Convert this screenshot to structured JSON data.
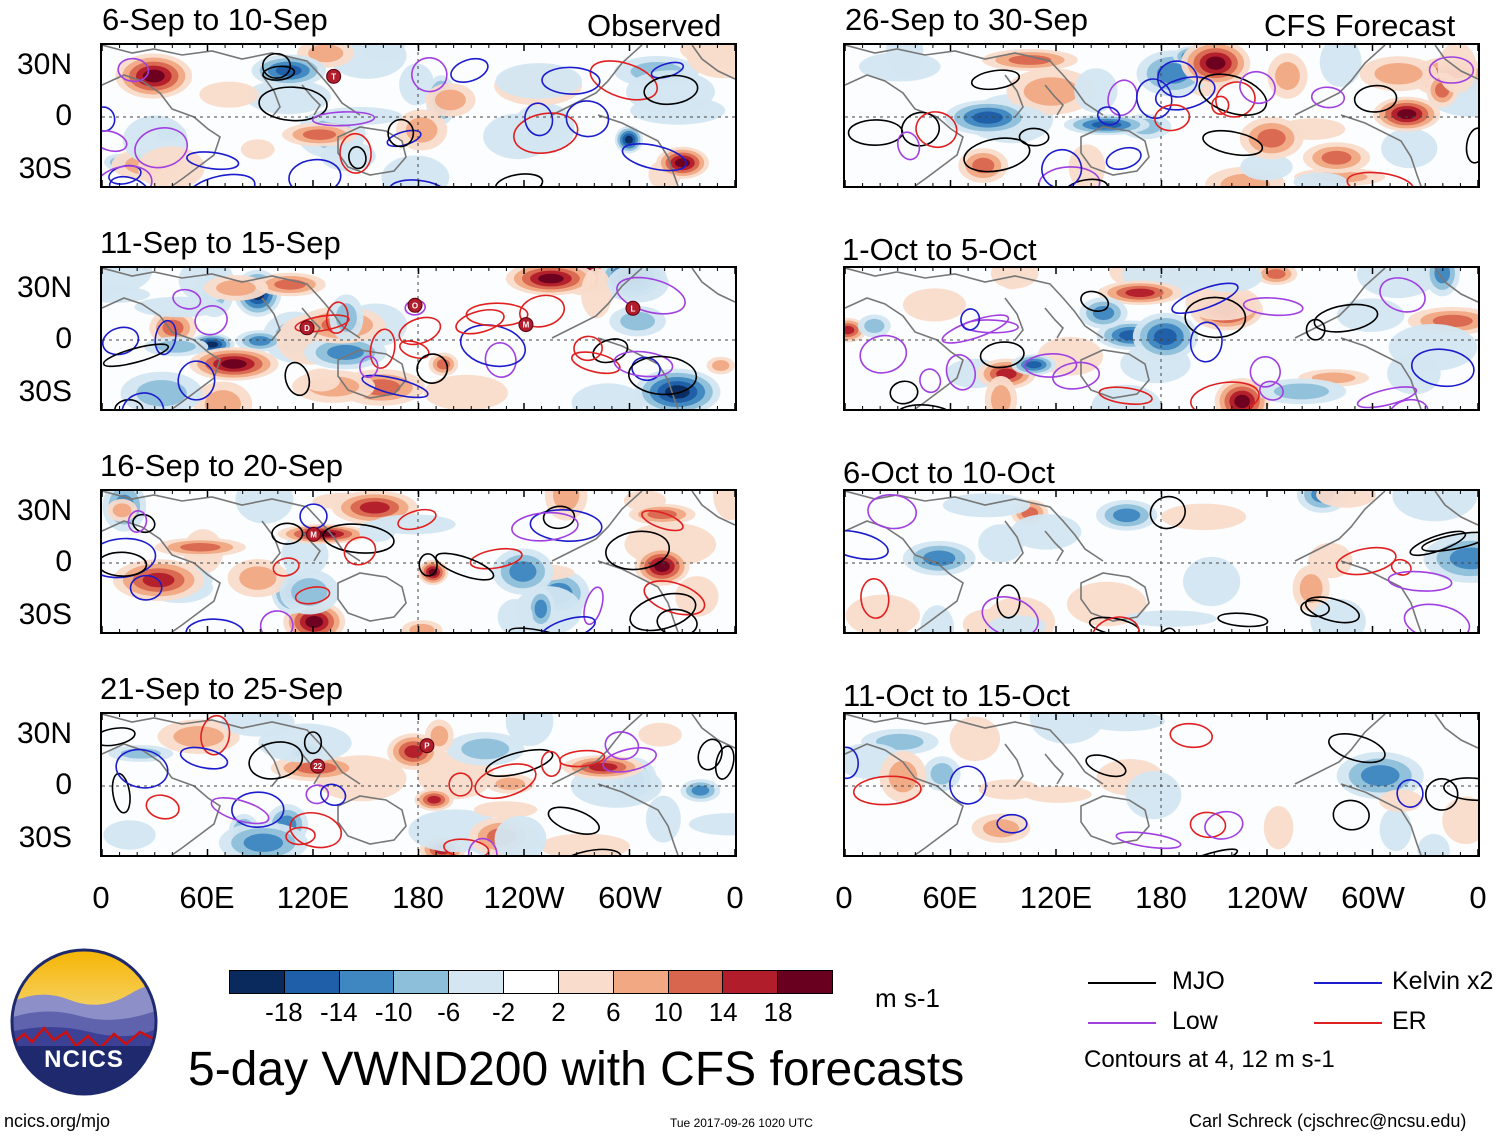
{
  "headers": {
    "observed": "Observed",
    "forecast": "CFS Forecast"
  },
  "panels": [
    {
      "period": "6-Sep to 10-Sep",
      "intensity": 1.0
    },
    {
      "period": "11-Sep to 15-Sep",
      "intensity": 1.0
    },
    {
      "period": "16-Sep to 20-Sep",
      "intensity": 0.9
    },
    {
      "period": "21-Sep to 25-Sep",
      "intensity": 0.85
    },
    {
      "period": "26-Sep to 30-Sep",
      "intensity": 0.9
    },
    {
      "period": "1-Oct to 5-Oct",
      "intensity": 0.8
    },
    {
      "period": "6-Oct to 10-Oct",
      "intensity": 0.45
    },
    {
      "period": "11-Oct to 15-Oct",
      "intensity": 0.3
    }
  ],
  "lat_labels": [
    "30N",
    "0",
    "30S"
  ],
  "lon_labels": [
    "0",
    "60E",
    "120E",
    "180",
    "120W",
    "60W",
    "0"
  ],
  "storm_markers": [
    {
      "panel": 0,
      "label": "T"
    },
    {
      "panel": 1,
      "label": "D"
    },
    {
      "panel": 1,
      "label": "O"
    },
    {
      "panel": 1,
      "label": "M"
    },
    {
      "panel": 1,
      "label": "L"
    },
    {
      "panel": 2,
      "label": "M"
    },
    {
      "panel": 3,
      "label": "22"
    },
    {
      "panel": 3,
      "label": "P"
    }
  ],
  "colorbar": {
    "colors": [
      "#0a2a5e",
      "#1f5ea8",
      "#3f87c0",
      "#8ebfda",
      "#d3e6f1",
      "#ffffff",
      "#f9dccb",
      "#f1a883",
      "#d8664f",
      "#b21d2b",
      "#6a0020"
    ],
    "tick_labels": [
      "-18",
      "-14",
      "-10",
      "-6",
      "-2",
      "2",
      "6",
      "10",
      "14",
      "18"
    ],
    "units": "m s-1"
  },
  "legend": {
    "items": [
      {
        "label": "MJO",
        "color": "#000000"
      },
      {
        "label": "Kelvin x2",
        "color": "#1c1ccc"
      },
      {
        "label": "Low",
        "color": "#a040e0"
      },
      {
        "label": "ER",
        "color": "#e02020"
      }
    ],
    "contours_note": "Contours at 4, 12 m s-1"
  },
  "logo": {
    "text": "NCICS"
  },
  "title": "5-day VWND200 with CFS forecasts",
  "footer": {
    "url": "ncics.org/mjo",
    "timestamp": "Tue 2017-09-26 1020 UTC",
    "author": "Carl Schreck (cjschrec@ncsu.edu)"
  }
}
